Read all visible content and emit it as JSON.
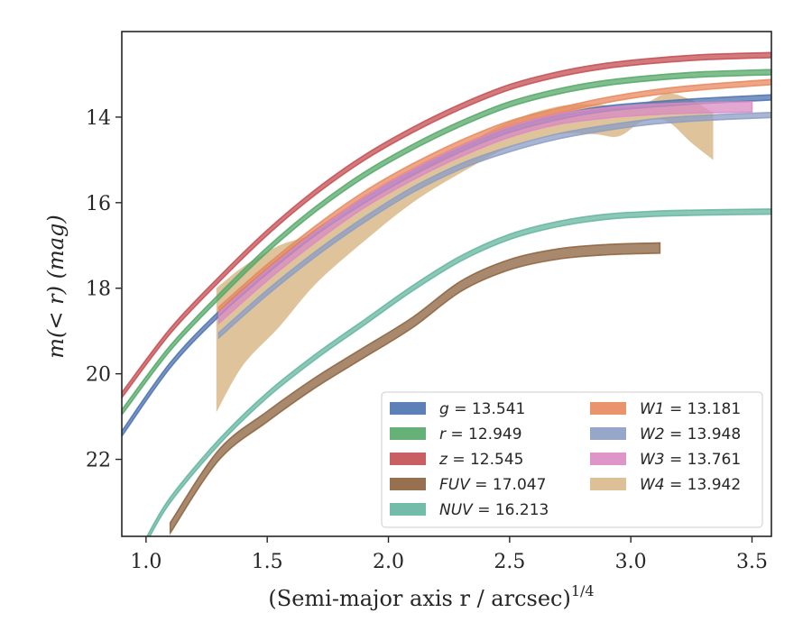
{
  "chart_data": {
    "type": "line",
    "xlabel": "(Semi-major axis r / arcsec)",
    "xlabel_sup": "1/4",
    "ylabel": "m(< r) (mag)",
    "xlim": [
      0.9,
      3.58
    ],
    "ylim": [
      23.8,
      12.0
    ],
    "y_inverted": true,
    "x_ticks": [
      1.0,
      1.5,
      2.0,
      2.5,
      3.0,
      3.5
    ],
    "x_tick_labels": [
      "1.0",
      "1.5",
      "2.0",
      "2.5",
      "3.0",
      "3.5"
    ],
    "y_ticks": [
      14,
      16,
      18,
      20,
      22
    ],
    "y_tick_labels": [
      "14",
      "16",
      "18",
      "20",
      "22"
    ],
    "grid": false,
    "legend_position": "lower-right",
    "legend_columns": 2,
    "series": [
      {
        "name": "g",
        "label_value": "13.541",
        "color": "#4c72b0",
        "x": [
          0.9,
          1.1,
          1.3,
          1.5,
          1.7,
          1.9,
          2.1,
          2.3,
          2.5,
          2.7,
          2.9,
          3.1,
          3.3,
          3.58
        ],
        "y": [
          21.4,
          19.8,
          18.6,
          17.6,
          16.7,
          15.95,
          15.3,
          14.75,
          14.3,
          14.0,
          13.8,
          13.7,
          13.62,
          13.54
        ],
        "band": 0.06
      },
      {
        "name": "r",
        "label_value": "12.949",
        "color": "#55a868",
        "x": [
          0.9,
          1.1,
          1.3,
          1.5,
          1.7,
          1.9,
          2.1,
          2.3,
          2.5,
          2.7,
          2.9,
          3.1,
          3.3,
          3.58
        ],
        "y": [
          20.9,
          19.4,
          18.2,
          17.1,
          16.15,
          15.35,
          14.7,
          14.15,
          13.7,
          13.4,
          13.2,
          13.08,
          13.0,
          12.95
        ],
        "band": 0.06
      },
      {
        "name": "z",
        "label_value": "12.545",
        "color": "#c44e52",
        "x": [
          0.9,
          1.1,
          1.3,
          1.5,
          1.7,
          1.9,
          2.1,
          2.3,
          2.5,
          2.7,
          2.9,
          3.1,
          3.3,
          3.58
        ],
        "y": [
          20.5,
          19.0,
          17.8,
          16.7,
          15.75,
          14.95,
          14.3,
          13.75,
          13.3,
          13.0,
          12.8,
          12.68,
          12.6,
          12.55
        ],
        "band": 0.06
      },
      {
        "name": "FUV",
        "label_value": "17.047",
        "color": "#8c613c",
        "x": [
          1.1,
          1.3,
          1.5,
          1.7,
          1.9,
          2.1,
          2.3,
          2.5,
          2.7,
          2.9,
          3.12
        ],
        "y": [
          23.6,
          21.9,
          21.0,
          20.2,
          19.5,
          18.8,
          17.95,
          17.45,
          17.2,
          17.1,
          17.06
        ],
        "band": 0.12
      },
      {
        "name": "NUV",
        "label_value": "16.213",
        "color": "#64b5a0",
        "x": [
          1.0,
          1.1,
          1.3,
          1.5,
          1.7,
          1.9,
          2.1,
          2.3,
          2.5,
          2.7,
          2.9,
          3.1,
          3.3,
          3.58
        ],
        "y": [
          23.9,
          22.95,
          21.6,
          20.5,
          19.6,
          18.8,
          18.0,
          17.3,
          16.8,
          16.5,
          16.33,
          16.26,
          16.23,
          16.21
        ],
        "band": 0.06
      },
      {
        "name": "W1",
        "label_value": "13.181",
        "color": "#e8885e",
        "x": [
          1.3,
          1.5,
          1.7,
          1.9,
          2.1,
          2.3,
          2.5,
          2.7,
          2.9,
          3.1,
          3.3,
          3.58
        ],
        "y": [
          18.5,
          17.5,
          16.6,
          15.8,
          15.15,
          14.6,
          14.15,
          13.85,
          13.6,
          13.42,
          13.3,
          13.18
        ],
        "band": 0.06
      },
      {
        "name": "W2",
        "label_value": "13.948",
        "color": "#8c9dc4",
        "x": [
          1.3,
          1.5,
          1.7,
          1.9,
          2.1,
          2.3,
          2.5,
          2.7,
          2.9,
          3.1,
          3.3,
          3.58
        ],
        "y": [
          19.1,
          18.1,
          17.2,
          16.4,
          15.7,
          15.15,
          14.75,
          14.45,
          14.25,
          14.1,
          14.02,
          13.95
        ],
        "band": 0.06
      },
      {
        "name": "W3",
        "label_value": "13.761",
        "color": "#da8bc3",
        "x": [
          1.3,
          1.5,
          1.7,
          1.9,
          2.1,
          2.3,
          2.5,
          2.7,
          2.9,
          3.1,
          3.3,
          3.5
        ],
        "y": [
          18.7,
          17.7,
          16.8,
          16.0,
          15.35,
          14.8,
          14.35,
          14.05,
          13.9,
          13.82,
          13.78,
          13.76
        ],
        "band": 0.12
      },
      {
        "name": "W4",
        "label_value": "13.942",
        "color": "#d9b98a",
        "x": [
          1.29,
          1.4,
          1.55,
          1.7,
          1.9,
          2.1,
          2.3,
          2.5,
          2.7,
          2.85,
          2.95,
          3.05,
          3.15,
          3.25,
          3.34
        ],
        "y_low": [
          20.9,
          19.8,
          18.9,
          17.9,
          16.9,
          16.0,
          15.3,
          14.7,
          14.4,
          14.4,
          14.45,
          14.1,
          14.1,
          14.6,
          15.0
        ],
        "y_high": [
          18.0,
          17.5,
          17.0,
          16.7,
          16.0,
          15.3,
          14.7,
          14.1,
          13.75,
          13.7,
          13.75,
          13.7,
          13.45,
          13.6,
          13.9
        ]
      }
    ]
  }
}
